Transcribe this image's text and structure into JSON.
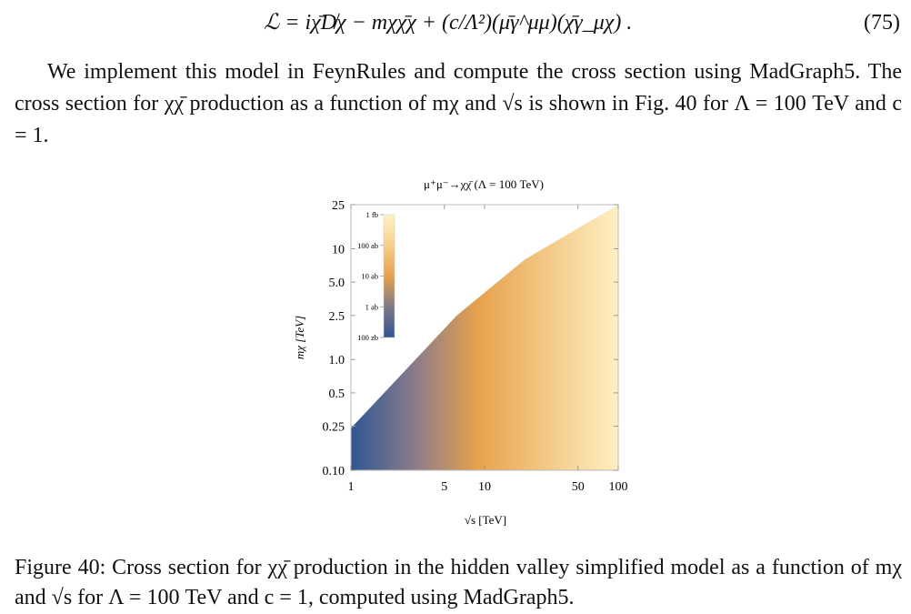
{
  "equation": {
    "body": "ℒ = iχ̄D̸χ − mχχ̄χ + (c/Λ²)(μ̄γ^μμ)(χ̄γ_μχ) .",
    "number": "(75)"
  },
  "paragraph": {
    "text": "We implement this model in FeynRules and compute the cross section using MadGraph5. The cross section for χχ̄ production as a function of mχ and √s is shown in Fig. 40 for Λ = 100 TeV and c = 1."
  },
  "chart_data": {
    "type": "heatmap",
    "title": "μ⁺μ⁻→χχ̄ (Λ = 100 TeV)",
    "xlabel": "√s [TeV]",
    "ylabel": "mχ [TeV]",
    "xscale": "log",
    "yscale": "log",
    "xlim": [
      1,
      100
    ],
    "ylim": [
      0.1,
      25
    ],
    "x_ticks": [
      {
        "value": 1,
        "label": "1"
      },
      {
        "value": 5,
        "label": "5"
      },
      {
        "value": 10,
        "label": "10"
      },
      {
        "value": 50,
        "label": "50"
      },
      {
        "value": 100,
        "label": "100"
      }
    ],
    "y_ticks": [
      {
        "value": 0.1,
        "label": "0.10"
      },
      {
        "value": 0.25,
        "label": "0.25"
      },
      {
        "value": 0.5,
        "label": "0.5"
      },
      {
        "value": 1.0,
        "label": "1.0"
      },
      {
        "value": 2.5,
        "label": "2.5"
      },
      {
        "value": 5.0,
        "label": "5.0"
      },
      {
        "value": 10,
        "label": "10"
      },
      {
        "value": 25,
        "label": "25"
      }
    ],
    "region_boundary": [
      {
        "x": 1,
        "y": 0.1
      },
      {
        "x": 100,
        "y": 0.1
      },
      {
        "x": 100,
        "y": 25
      },
      {
        "x": 20,
        "y": 8
      },
      {
        "x": 6.2,
        "y": 2.5
      },
      {
        "x": 1,
        "y": 0.24
      }
    ],
    "color_gradient_along_x": [
      {
        "x": 1,
        "color": "#2f5694"
      },
      {
        "x": 3,
        "color": "#8a7c8a"
      },
      {
        "x": 9,
        "color": "#e8a24c"
      },
      {
        "x": 100,
        "color": "#fff0c2"
      }
    ],
    "colorbar": {
      "labels": [
        "1 fb",
        "100 ab",
        "10 ab",
        "1 ab",
        "100 zb"
      ],
      "stops": [
        "#fff3c6",
        "#f7cf8c",
        "#e8a24c",
        "#7f7887",
        "#2f5694"
      ]
    }
  },
  "caption": {
    "text": "Figure 40: Cross section for χχ̄ production in the hidden valley simplified model as a function of mχ and √s for Λ = 100 TeV and c = 1, computed using MadGraph5."
  }
}
